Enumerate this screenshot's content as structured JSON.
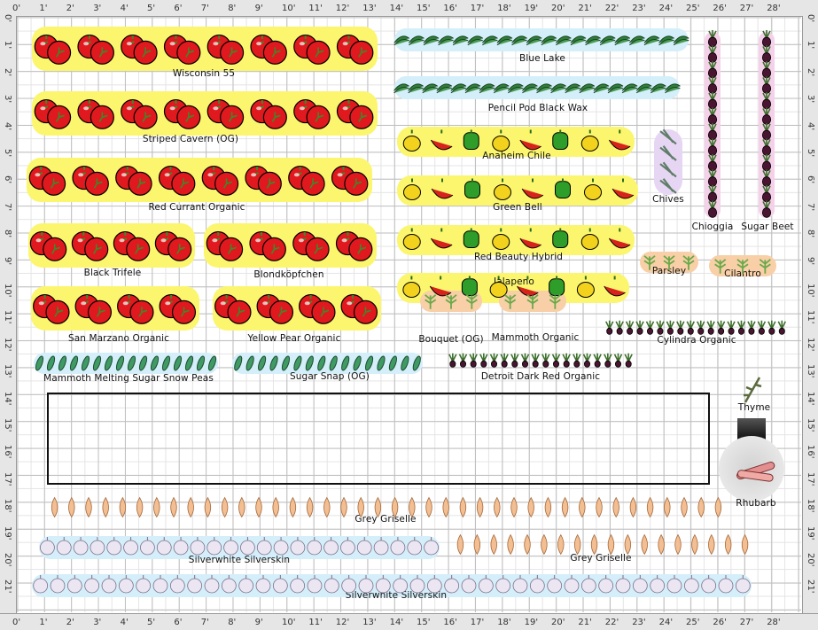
{
  "rulers": {
    "top": [
      "0'",
      "1'",
      "2'",
      "3'",
      "4'",
      "5'",
      "6'",
      "7'",
      "8'",
      "9'",
      "10'",
      "11'",
      "12'",
      "13'",
      "14'",
      "15'",
      "16'",
      "17'",
      "18'",
      "19'",
      "20'",
      "21'",
      "22'",
      "23'",
      "24'",
      "25'",
      "26'",
      "27'",
      "28'"
    ],
    "left": [
      "0'",
      "1'",
      "2'",
      "3'",
      "4'",
      "5'",
      "6'",
      "7'",
      "8'",
      "9'",
      "10'",
      "11'",
      "12'",
      "13'",
      "14'",
      "15'",
      "16'",
      "17'",
      "18'",
      "19'",
      "20'",
      "21'"
    ]
  },
  "plants": [
    {
      "label": "Wisconsin 55",
      "icon": "tomato-icon",
      "highlight": "yellow"
    },
    {
      "label": "Striped Cavern (OG)",
      "icon": "tomato-icon",
      "highlight": "yellow"
    },
    {
      "label": "Red Currant Organic",
      "icon": "tomato-icon",
      "highlight": "yellow"
    },
    {
      "label": "Black Trifele",
      "icon": "tomato-icon",
      "highlight": "yellow"
    },
    {
      "label": "Blondköpfchen",
      "icon": "tomato-icon",
      "highlight": "yellow"
    },
    {
      "label": "San Marzano Organic",
      "icon": "tomato-icon",
      "highlight": "yellow"
    },
    {
      "label": "Yellow Pear Organic",
      "icon": "tomato-icon",
      "highlight": "yellow"
    },
    {
      "label": "Mammoth Melting Sugar Snow Peas",
      "icon": "pea-icon",
      "highlight": "blue"
    },
    {
      "label": "Sugar Snap (OG)",
      "icon": "pea-icon",
      "highlight": "blue"
    },
    {
      "label": "Blue Lake",
      "icon": "bean-icon",
      "highlight": "blue"
    },
    {
      "label": "Pencil Pod Black Wax",
      "icon": "bean-icon",
      "highlight": "blue"
    },
    {
      "label": "Anaheim Chile",
      "icon": "pepper-icon",
      "highlight": "yellow"
    },
    {
      "label": "Green Bell",
      "icon": "pepper-icon",
      "highlight": "yellow"
    },
    {
      "label": "Red Beauty Hybrid",
      "icon": "pepper-icon",
      "highlight": "yellow"
    },
    {
      "label": "Jalapeno",
      "icon": "pepper-icon",
      "highlight": "yellow"
    },
    {
      "label": "Chives",
      "icon": "chives-icon",
      "highlight": "violet"
    },
    {
      "label": "Chioggia",
      "icon": "beet-icon",
      "highlight": "pink"
    },
    {
      "label": "Sugar Beet",
      "icon": "beet-icon",
      "highlight": "pink"
    },
    {
      "label": "Parsley",
      "icon": "parsley-icon",
      "highlight": "orange"
    },
    {
      "label": "Cilantro",
      "icon": "cilantro-icon",
      "highlight": "orange"
    },
    {
      "label": "Bouquet (OG)",
      "icon": "dill-icon",
      "highlight": "orange"
    },
    {
      "label": "Mammoth Organic",
      "icon": "dill-icon",
      "highlight": "orange"
    },
    {
      "label": "Cylindra Organic",
      "icon": "beet-icon",
      "highlight": "none"
    },
    {
      "label": "Detroit Dark Red Organic",
      "icon": "beet-icon",
      "highlight": "none"
    },
    {
      "label": "Thyme",
      "icon": "thyme-icon",
      "highlight": "none"
    },
    {
      "label": "Rhubarb",
      "icon": "rhubarb-icon",
      "highlight": "none"
    },
    {
      "label": "Grey Griselle",
      "icon": "shallot-icon",
      "highlight": "none"
    },
    {
      "label": "Silverwhite Silverskin",
      "icon": "garlic-icon",
      "highlight": "blue"
    },
    {
      "label": "Grey Griselle",
      "icon": "shallot-icon",
      "highlight": "none"
    },
    {
      "label": "Silverwhite Silverskin",
      "icon": "garlic-icon",
      "highlight": "blue"
    }
  ],
  "colors": {
    "tomato": "#e0191e",
    "pepper-green": "#2e9d2a",
    "pepper-yellow": "#f2d21c",
    "pepper-red": "#d8231c",
    "bean": "#2f7f3a",
    "pea": "#3f9a63",
    "beet": "#4a1530",
    "chives": "#5f7d69",
    "shallot": "#f3be92",
    "garlic": "#ebe6f1",
    "herb": "#6aa94a",
    "highlight-yellow": "#fbf66e",
    "highlight-blue": "#d4eefa"
  }
}
